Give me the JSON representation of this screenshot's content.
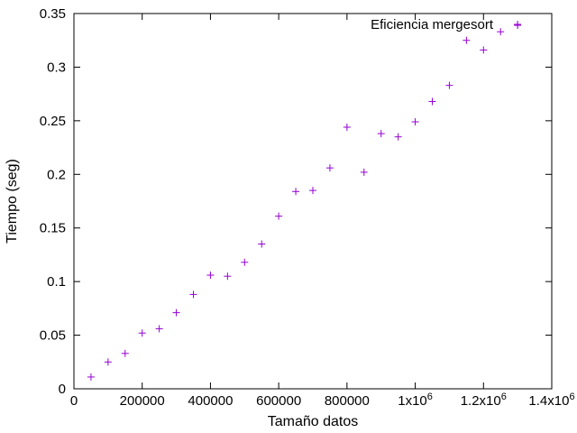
{
  "chart_data": {
    "type": "scatter",
    "title": "",
    "xlabel": "Tamaño datos",
    "ylabel": "Tiempo (seg)",
    "xlim": [
      0,
      1400000
    ],
    "ylim": [
      0,
      0.35
    ],
    "grid": false,
    "legend_position": "top-right",
    "x_ticks": [
      {
        "value": 0,
        "label": "0",
        "sup": ""
      },
      {
        "value": 200000,
        "label": "200000",
        "sup": ""
      },
      {
        "value": 400000,
        "label": "400000",
        "sup": ""
      },
      {
        "value": 600000,
        "label": "600000",
        "sup": ""
      },
      {
        "value": 800000,
        "label": "800000",
        "sup": ""
      },
      {
        "value": 1000000,
        "label": "1x10",
        "sup": "6"
      },
      {
        "value": 1200000,
        "label": "1.2x10",
        "sup": "6"
      },
      {
        "value": 1400000,
        "label": "1.4x10",
        "sup": "6"
      }
    ],
    "y_ticks": [
      {
        "value": 0,
        "label": "0"
      },
      {
        "value": 0.05,
        "label": "0.05"
      },
      {
        "value": 0.1,
        "label": "0.1"
      },
      {
        "value": 0.15,
        "label": "0.15"
      },
      {
        "value": 0.2,
        "label": "0.2"
      },
      {
        "value": 0.25,
        "label": "0.25"
      },
      {
        "value": 0.3,
        "label": "0.3"
      },
      {
        "value": 0.35,
        "label": "0.35"
      }
    ],
    "series": [
      {
        "name": "Eficiencia mergesort",
        "color": "#9400d3",
        "marker": "plus",
        "x": [
          50000,
          100000,
          150000,
          200000,
          250000,
          300000,
          350000,
          400000,
          450000,
          500000,
          550000,
          600000,
          650000,
          700000,
          750000,
          800000,
          850000,
          900000,
          950000,
          1000000,
          1050000,
          1100000,
          1150000,
          1200000,
          1250000,
          1300000
        ],
        "y": [
          0.011,
          0.025,
          0.033,
          0.052,
          0.056,
          0.071,
          0.088,
          0.106,
          0.105,
          0.118,
          0.135,
          0.161,
          0.184,
          0.185,
          0.206,
          0.244,
          0.202,
          0.238,
          0.235,
          0.249,
          0.268,
          0.283,
          0.325,
          0.316,
          0.333,
          0.339
        ]
      }
    ]
  }
}
